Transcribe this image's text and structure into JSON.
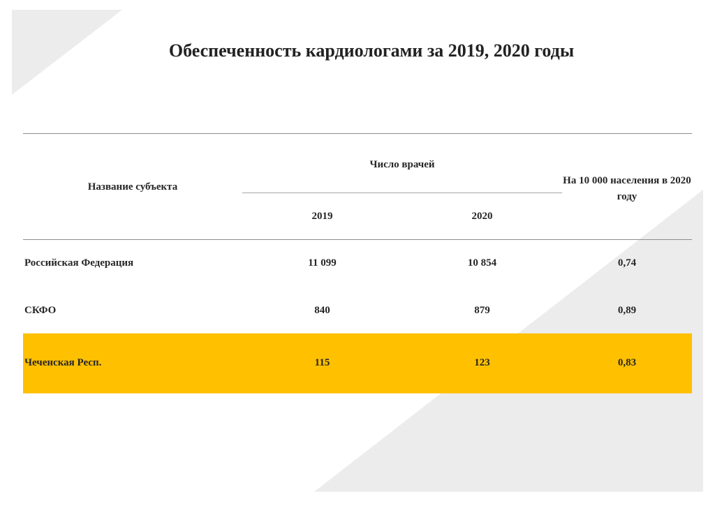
{
  "title": "Обеспеченность кардиологами за 2019, 2020 годы",
  "colors": {
    "highlight": "#ffc000",
    "background_shape": "#ececec"
  },
  "table": {
    "header": {
      "name": "Название субъекта",
      "count_group": "Число врачей",
      "year1": "2019",
      "year2": "2020",
      "per_10000": "На 10 000 населения в 2020 году"
    },
    "rows": [
      {
        "name": "Российская Федерация",
        "v2019": "11 099",
        "v2020": "10 854",
        "per10000": "0,74"
      },
      {
        "name": "СКФО",
        "v2019": "840",
        "v2020": "879",
        "per10000": "0,89"
      },
      {
        "name": "Чеченская Респ.",
        "v2019": "115",
        "v2020": "123",
        "per10000": "0,83",
        "highlighted": true
      }
    ]
  }
}
